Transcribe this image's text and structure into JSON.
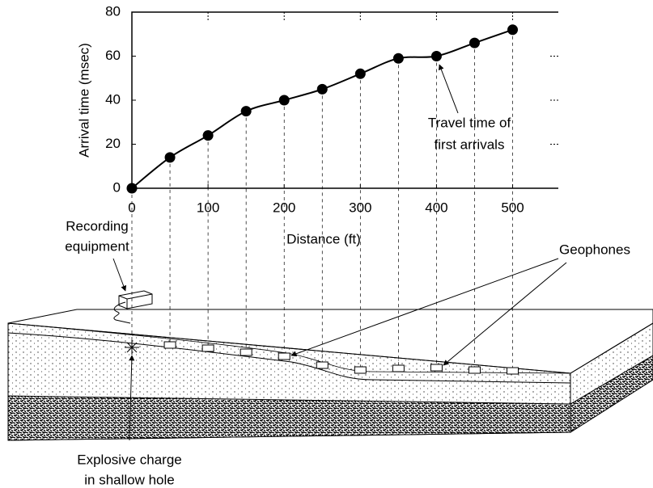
{
  "chart_data": {
    "type": "line",
    "x": [
      0,
      50,
      100,
      150,
      200,
      250,
      300,
      350,
      400,
      450,
      500
    ],
    "series": [
      {
        "color": "#000000",
        "values": [
          0,
          14,
          24,
          35,
          40,
          45,
          52,
          59,
          60,
          66,
          72
        ]
      }
    ],
    "xlim": [
      0,
      560
    ],
    "ylim": [
      0,
      80
    ],
    "xticks": [
      0,
      100,
      200,
      300,
      400,
      500
    ],
    "yticks": [
      0,
      20,
      40,
      60,
      80
    ],
    "x_label": "Distance (ft)",
    "y_label": "Arrival time (msec)",
    "markers": true,
    "annotations": [
      {
        "lines": [
          "Travel time of",
          "first arrivals"
        ]
      }
    ]
  },
  "diagram": {
    "labels": [
      {
        "lines": [
          "Recording",
          "equipment"
        ]
      },
      {
        "lines": [
          "Geophones"
        ]
      },
      {
        "lines": [
          "Explosive charge",
          "in shallow hole"
        ]
      }
    ]
  }
}
